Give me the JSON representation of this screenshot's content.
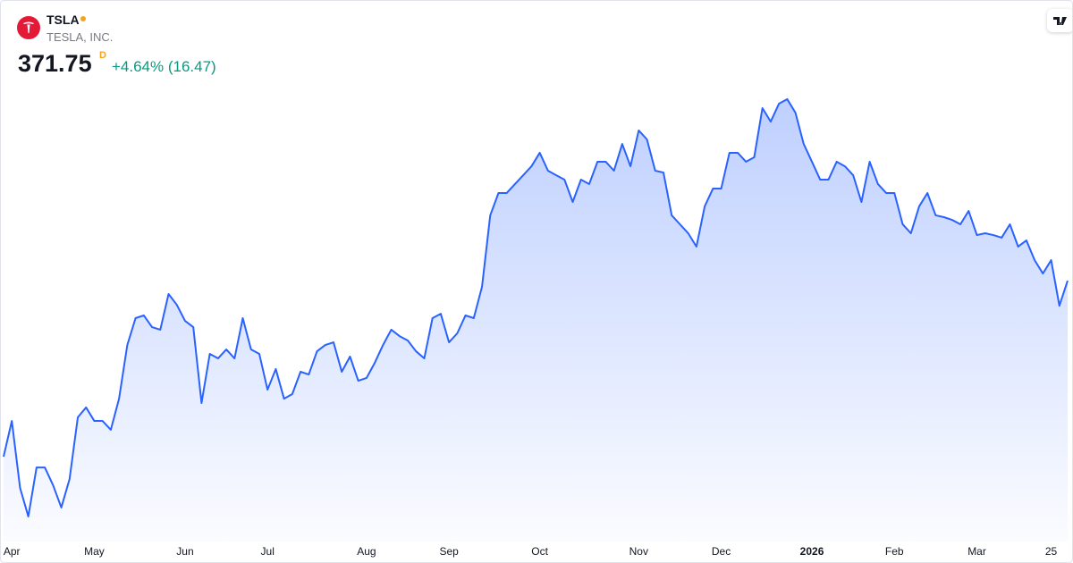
{
  "chart_data": {
    "type": "area",
    "symbol": "TSLA",
    "company": "TESLA, INC.",
    "price": 371.75,
    "interval": "D",
    "change": "+4.64% (16.47)",
    "color": "#2962ff",
    "values": [
      255.9,
      279.4,
      235.3,
      216.5,
      248.8,
      248.8,
      237.1,
      222.4,
      241.2,
      281.8,
      288.3,
      279.4,
      279.4,
      273.6,
      294.1,
      329.4,
      347.1,
      348.9,
      341.2,
      339.5,
      363.0,
      355.9,
      345.3,
      341.2,
      291.2,
      323.6,
      320.6,
      326.5,
      320.6,
      347.1,
      326.5,
      323.6,
      300.0,
      313.6,
      294.1,
      297.1,
      311.8,
      310.0,
      325.3,
      329.4,
      331.2,
      311.8,
      321.8,
      305.9,
      307.7,
      317.7,
      329.4,
      339.5,
      335.3,
      332.4,
      325.3,
      320.6,
      347.1,
      350.0,
      331.2,
      337.1,
      348.9,
      347.1,
      367.7,
      414.8,
      429.5,
      429.5,
      435.4,
      441.2,
      447.1,
      456.0,
      444.2,
      441.2,
      438.3,
      423.6,
      438.3,
      435.4,
      450.1,
      450.1,
      444.2,
      461.8,
      447.1,
      470.7,
      464.8,
      444.2,
      443.0,
      414.8,
      408.9,
      403.0,
      394.2,
      420.7,
      432.4,
      432.4,
      456.0,
      456.0,
      450.1,
      453.0,
      485.4,
      476.5,
      488.3,
      491.3,
      482.4,
      461.8,
      450.1,
      438.3,
      438.3,
      450.1,
      447.1,
      441.2,
      423.6,
      450.1,
      435.4,
      429.5,
      429.5,
      408.9,
      403.0,
      420.7,
      429.5,
      414.8,
      413.6,
      411.8,
      408.9,
      417.7,
      401.8,
      403.0,
      401.8,
      400.1,
      408.9,
      394.2,
      398.3,
      385.3,
      376.5,
      385.3,
      355.28,
      371.75
    ],
    "ylim": [
      200,
      556
    ],
    "xticks": [
      {
        "value": 1,
        "label": "Apr"
      },
      {
        "value": 11,
        "label": "May"
      },
      {
        "value": 22,
        "label": "Jun"
      },
      {
        "value": 32,
        "label": "Jul"
      },
      {
        "value": 44,
        "label": "Aug"
      },
      {
        "value": 54,
        "label": "Sep"
      },
      {
        "value": 65,
        "label": "Oct"
      },
      {
        "value": 77,
        "label": "Nov"
      },
      {
        "value": 87,
        "label": "Dec"
      },
      {
        "value": 98,
        "label": "2026"
      },
      {
        "value": 108,
        "label": "Feb"
      },
      {
        "value": 118,
        "label": "Mar"
      },
      {
        "value": 127,
        "label": "25"
      }
    ]
  }
}
